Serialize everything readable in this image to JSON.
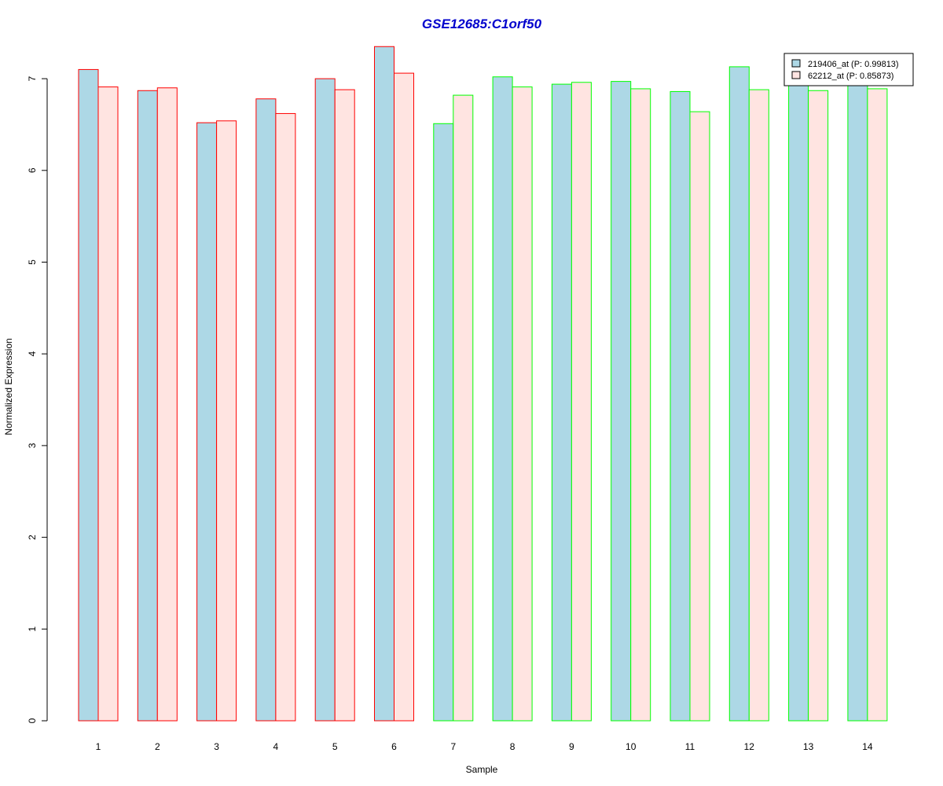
{
  "chart_data": {
    "type": "bar",
    "title": "GSE12685:C1orf50",
    "xlabel": "Sample",
    "ylabel": "Normalized Expression",
    "categories": [
      "1",
      "2",
      "3",
      "4",
      "5",
      "6",
      "7",
      "8",
      "9",
      "10",
      "11",
      "12",
      "13",
      "14"
    ],
    "yticks": [
      "0",
      "1",
      "2",
      "3",
      "4",
      "5",
      "6",
      "7"
    ],
    "ylim": [
      0,
      7.3
    ],
    "grid": false,
    "legend_position": "top-right",
    "series": [
      {
        "name": "219406_at (P: 0.99813)",
        "values": [
          7.1,
          6.87,
          6.52,
          6.78,
          7.0,
          7.35,
          6.51,
          7.02,
          6.94,
          6.97,
          6.86,
          7.13,
          6.95,
          6.95
        ]
      },
      {
        "name": "62212_at (P: 0.85873)",
        "values": [
          6.91,
          6.9,
          6.54,
          6.62,
          6.88,
          7.06,
          6.82,
          6.91,
          6.96,
          6.89,
          6.64,
          6.88,
          6.87,
          6.89
        ]
      }
    ],
    "group_border_colors": [
      "#FF0000",
      "#FF0000",
      "#FF0000",
      "#FF0000",
      "#FF0000",
      "#FF0000",
      "#00FF00",
      "#00FF00",
      "#00FF00",
      "#00FF00",
      "#00FF00",
      "#00FF00",
      "#00FF00",
      "#00FF00"
    ],
    "series_fill_colors": [
      "#ADD8E6",
      "#FFE4E1"
    ],
    "title_color": "#0000CD"
  }
}
